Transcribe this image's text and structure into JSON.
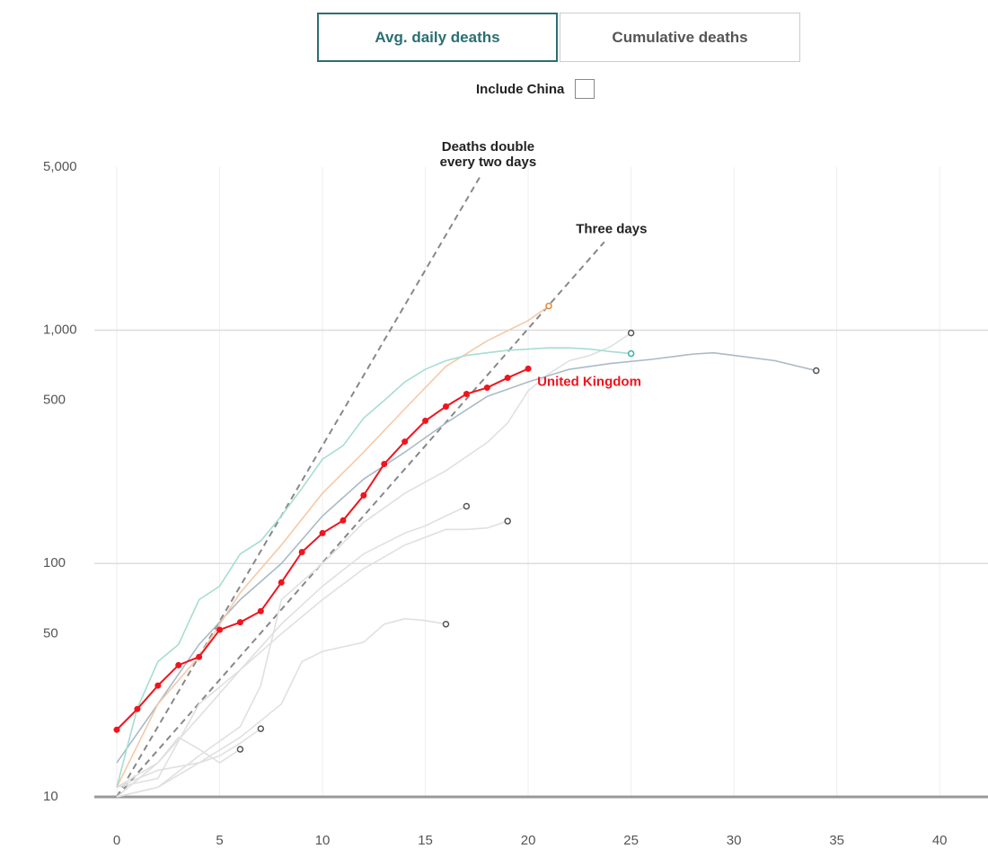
{
  "controls": {
    "buttons": [
      "Avg. daily deaths",
      "Cumulative deaths"
    ],
    "active": 0,
    "checkbox": "Include China"
  },
  "chart_data": {
    "type": "line",
    "log_y": true,
    "xlim": [
      0,
      42
    ],
    "xticks": [
      0,
      5,
      10,
      15,
      20,
      25,
      30,
      35,
      40
    ],
    "ylim": [
      10,
      5000
    ],
    "yticks": [
      10,
      50,
      100,
      500,
      {
        "value": 1000,
        "label": "1,000"
      },
      {
        "value": 5000,
        "label": "5,000"
      }
    ],
    "grid_y": [
      100,
      1000
    ],
    "reference_lines": [
      {
        "label_lines": [
          "Deaths double",
          "every two days"
        ],
        "start": 10,
        "doubling_days": 2,
        "x_end": 17.7
      },
      {
        "label_lines": [
          "Three days"
        ],
        "start": 10,
        "doubling_days": 3,
        "x_end": 23.7
      }
    ],
    "series": [
      {
        "color": "#e0e0e0",
        "marker_color": "#555",
        "x": [
          0,
          2,
          3,
          4,
          5,
          6
        ],
        "values": [
          11,
          14,
          18,
          16,
          14,
          16
        ]
      },
      {
        "color": "#e0e0e0",
        "marker_color": "#555",
        "x": [
          0,
          2,
          4,
          5,
          6,
          7
        ],
        "values": [
          11,
          13,
          14,
          15,
          17,
          19.6
        ]
      },
      {
        "color": "#e0e0e0",
        "marker_color": "#555",
        "x": [
          0,
          2,
          4,
          6,
          8,
          9,
          10,
          12,
          13,
          14,
          15,
          16
        ],
        "values": [
          10,
          11,
          14,
          18,
          25,
          38,
          42,
          46,
          55,
          58,
          57,
          55
        ]
      },
      {
        "color": "#e0e0e0",
        "marker_color": "#555",
        "x": [
          0,
          2,
          4,
          6,
          8,
          10,
          12,
          14,
          16,
          17,
          18,
          19
        ],
        "values": [
          11,
          12,
          25,
          35,
          50,
          70,
          95,
          120,
          140,
          140,
          142,
          152
        ]
      },
      {
        "color": "#e0e0e0",
        "marker_color": "#555",
        "x": [
          0,
          2,
          4,
          6,
          8,
          10,
          12,
          14,
          15,
          16,
          17
        ],
        "values": [
          10,
          14,
          22,
          35,
          55,
          80,
          110,
          135,
          145,
          160,
          176
        ]
      },
      {
        "color": "#e0e0e0",
        "marker_color": "#555",
        "x": [
          0,
          2,
          4,
          6,
          7,
          8,
          10,
          12,
          14,
          16,
          18,
          19,
          20,
          21,
          22,
          23,
          24,
          25
        ],
        "values": [
          10,
          11,
          15,
          20,
          30,
          70,
          100,
          150,
          200,
          250,
          330,
          400,
          550,
          650,
          740,
          780,
          850,
          973
        ]
      },
      {
        "color": "#a9bac7",
        "marker_color": "#555",
        "x": [
          0,
          2,
          4,
          6,
          8,
          10,
          12,
          14,
          16,
          18,
          20,
          22,
          24,
          26,
          28,
          29,
          30,
          32,
          34
        ],
        "values": [
          14,
          25,
          45,
          70,
          100,
          160,
          230,
          300,
          400,
          520,
          600,
          680,
          720,
          750,
          790,
          800,
          780,
          740,
          671
        ]
      },
      {
        "color": "#f6c9a6",
        "marker_color": "#e8873a",
        "x": [
          0,
          2,
          4,
          6,
          8,
          10,
          12,
          14,
          16,
          18,
          20,
          21
        ],
        "values": [
          11,
          25,
          40,
          75,
          120,
          200,
          300,
          460,
          700,
          900,
          1100,
          1270
        ]
      },
      {
        "color": "#a6ddd2",
        "marker_color": "#3bb3a3",
        "x": [
          0,
          1,
          2,
          3,
          4,
          5,
          6,
          7,
          8,
          9,
          10,
          11,
          12,
          13,
          14,
          15,
          16,
          17,
          18,
          19,
          20,
          21,
          22,
          23,
          24,
          25
        ],
        "values": [
          11,
          24,
          38,
          45,
          70,
          80,
          110,
          125,
          160,
          210,
          280,
          320,
          420,
          500,
          600,
          680,
          740,
          780,
          800,
          820,
          830,
          840,
          840,
          830,
          810,
          794
        ]
      },
      {
        "name": "United Kingdom",
        "color": "#f0141e",
        "markers": true,
        "x": [
          0,
          1,
          2,
          3,
          4,
          5,
          6,
          7,
          8,
          9,
          10,
          11,
          12,
          13,
          14,
          15,
          16,
          17,
          18,
          19,
          20
        ],
        "values": [
          19.4,
          23.8,
          30,
          36.7,
          39.8,
          52,
          56,
          62.5,
          83,
          112,
          135,
          153,
          196,
          267,
          333,
          409,
          471,
          533,
          567,
          625,
          684
        ]
      }
    ]
  }
}
